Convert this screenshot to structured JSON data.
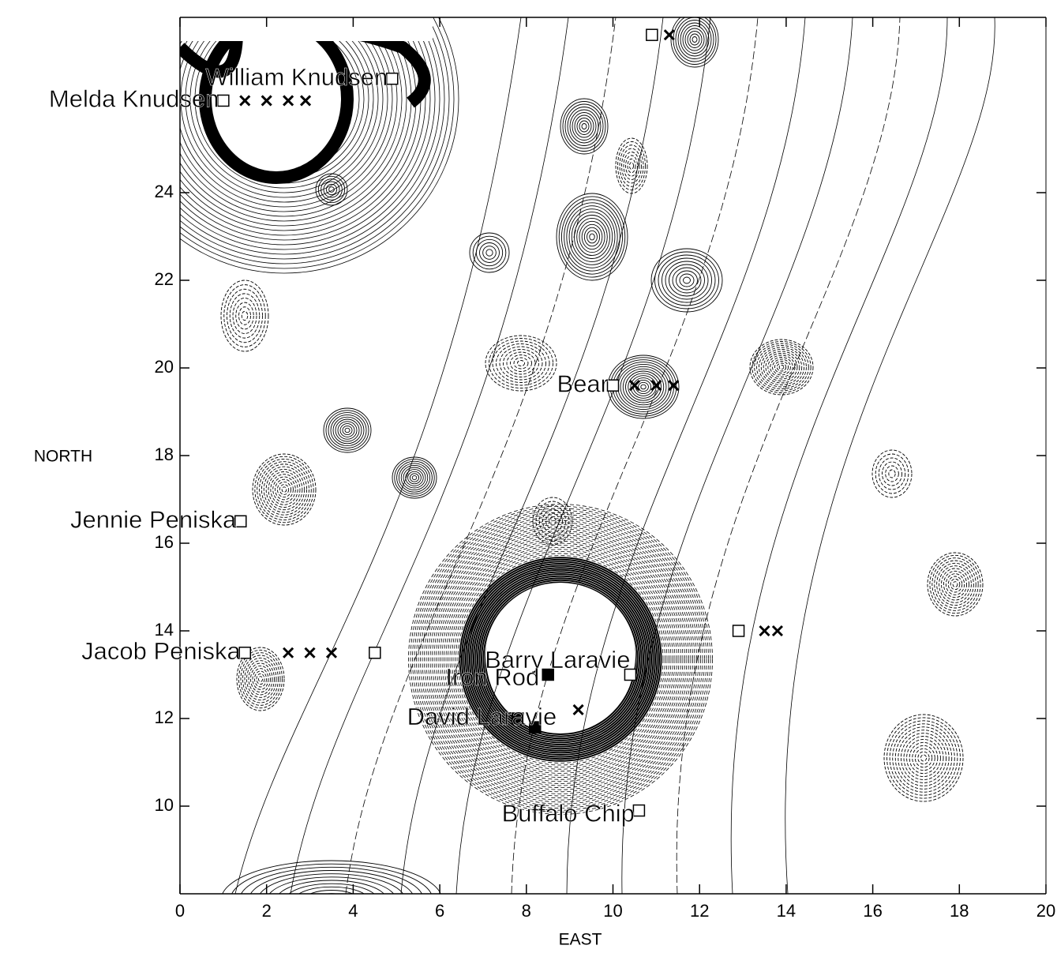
{
  "chart_data": {
    "type": "contour",
    "x_label": "EAST",
    "y_label": "NORTH",
    "xlim": [
      0,
      20
    ],
    "ylim": [
      8,
      28
    ],
    "xticks": [
      0,
      2,
      4,
      6,
      8,
      10,
      12,
      14,
      16,
      18,
      20
    ],
    "yticks": [
      10,
      12,
      14,
      16,
      18,
      20,
      22,
      24
    ],
    "series": [
      {
        "marker": "square",
        "x": [
          4.9,
          1.0,
          10.0,
          1.4,
          1.5,
          4.5,
          10.4,
          10.6,
          10.9,
          12.9
        ],
        "values": [
          26.6,
          26.1,
          19.6,
          16.5,
          13.5,
          13.5,
          13.0,
          9.9,
          27.6,
          14.0
        ]
      },
      {
        "marker": "cross",
        "x": [
          1.5,
          2.0,
          2.5,
          2.9,
          10.5,
          11.0,
          11.4,
          2.5,
          3.0,
          3.5,
          9.2,
          11.3,
          13.5,
          13.8
        ],
        "values": [
          26.1,
          26.1,
          26.1,
          26.1,
          19.6,
          19.6,
          19.6,
          13.5,
          13.5,
          13.5,
          12.2,
          27.6,
          14.0,
          14.0
        ]
      },
      {
        "marker": "filled-square",
        "x": [
          8.5,
          7.8,
          8.2
        ],
        "values": [
          13.0,
          12.0,
          11.8
        ]
      }
    ],
    "annotations": [
      {
        "text": "William Knudsen",
        "x": 4.8,
        "y": 26.6
      },
      {
        "text": "Melda Knudsen",
        "x": 0.9,
        "y": 26.1
      },
      {
        "text": "Bear",
        "x": 9.9,
        "y": 19.6
      },
      {
        "text": "Jennie Peniska",
        "x": 1.3,
        "y": 16.5
      },
      {
        "text": "Jacob Peniska",
        "x": 1.4,
        "y": 13.5
      },
      {
        "text": "Barry Laravie",
        "x": 10.4,
        "y": 13.3
      },
      {
        "text": "Iron Rod",
        "x": 8.3,
        "y": 12.9
      },
      {
        "text": "David Laravie",
        "x": 8.7,
        "y": 12.0
      },
      {
        "text": "Buffalo Chip",
        "x": 10.5,
        "y": 9.8
      }
    ]
  }
}
